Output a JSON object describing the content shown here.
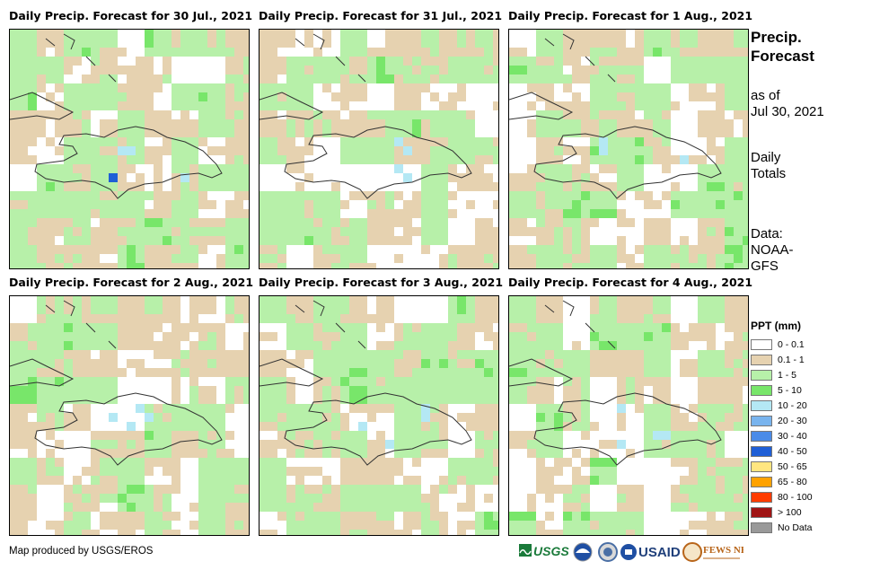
{
  "panels": [
    {
      "title": "Daily Precip. Forecast for 30 Jul., 2021"
    },
    {
      "title": "Daily Precip. Forecast for 31 Jul., 2021"
    },
    {
      "title": "Daily Precip. Forecast for 1 Aug., 2021"
    },
    {
      "title": "Daily Precip. Forecast for 2 Aug., 2021"
    },
    {
      "title": "Daily Precip. Forecast for 3 Aug., 2021"
    },
    {
      "title": "Daily Precip. Forecast for 4 Aug., 2021"
    }
  ],
  "side": {
    "title_line1": "Precip.",
    "title_line2": "Forecast",
    "asof_line1": "as of",
    "asof_line2": "Jul 30, 2021",
    "totals_line1": "Daily",
    "totals_line2": "Totals",
    "data_line1": "Data:",
    "data_line2": "NOAA-",
    "data_line3": "GFS"
  },
  "legend": {
    "title": "PPT (mm)",
    "items": [
      {
        "label": "0 - 0.1",
        "color": "#ffffff"
      },
      {
        "label": "0.1 - 1",
        "color": "#e6d2b0"
      },
      {
        "label": "1 - 5",
        "color": "#b7f0a9"
      },
      {
        "label": "5 - 10",
        "color": "#78e66a"
      },
      {
        "label": "10 - 20",
        "color": "#b4e8f4"
      },
      {
        "label": "20 - 30",
        "color": "#79b4ee"
      },
      {
        "label": "30 - 40",
        "color": "#4a8be8"
      },
      {
        "label": "40 - 50",
        "color": "#1f5fd6"
      },
      {
        "label": "50 - 65",
        "color": "#ffe680"
      },
      {
        "label": "65 - 80",
        "color": "#ffa200"
      },
      {
        "label": "80 - 100",
        "color": "#ff3c00"
      },
      {
        "label": "> 100",
        "color": "#a01414"
      },
      {
        "label": "No Data",
        "color": "#999999"
      }
    ]
  },
  "credit": "Map produced by USGS/EROS",
  "logos": {
    "usgs": "USGS",
    "usaid": "USAID",
    "fewsnet": "FEWS NET"
  }
}
